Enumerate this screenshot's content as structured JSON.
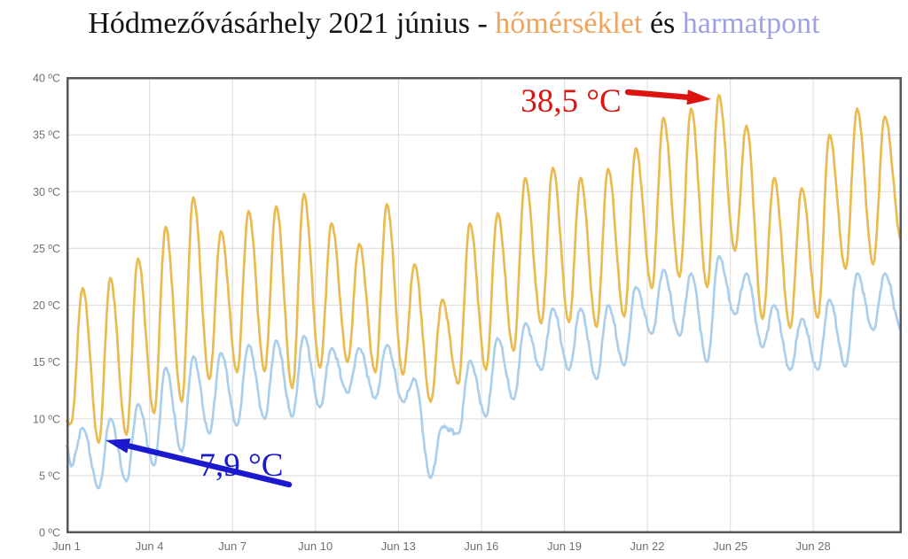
{
  "title": {
    "prefix": "Hódmezővásárhely 2021 június - ",
    "temp_word": "hőmérséklet",
    "conj": " és ",
    "dew_word": "harmatpont"
  },
  "annotations": {
    "max_label": "38,5 °C",
    "min_label": "7,9 °C"
  },
  "colors": {
    "temperature_line": "#E8BC52",
    "dewpoint_line": "#ABCFEA",
    "title_temp_word": "#F0A35B",
    "title_dew_word": "#9EA0E4",
    "annotation_max": "#DB1410",
    "annotation_min": "#1A19CD",
    "grid": "#E0E0E0",
    "plot_border": "#56575C",
    "axis_text": "#6F6F6F"
  },
  "chart_data": {
    "type": "line",
    "title": "Hódmezővásárhely 2021 június - hőmérséklet és harmatpont",
    "xlabel": "",
    "ylabel": "",
    "ylim": [
      0,
      40
    ],
    "grid": true,
    "y_ticks": [
      0,
      5,
      10,
      15,
      20,
      25,
      30,
      35,
      40
    ],
    "y_tick_labels": [
      "0 ºC",
      "5 ºC",
      "10 ºC",
      "15 ºC",
      "20 ºC",
      "25 ºC",
      "30 ºC",
      "35 ºC",
      "40 ºC"
    ],
    "x_tick_days": [
      1,
      4,
      7,
      10,
      13,
      16,
      19,
      22,
      25,
      28
    ],
    "x_tick_labels": [
      "Jun 1",
      "Jun 4",
      "Jun 7",
      "Jun 10",
      "Jun 13",
      "Jun 16",
      "Jun 19",
      "Jun 22",
      "Jun 25",
      "Jun 28"
    ],
    "min_hour": 4,
    "max_hour": 14,
    "series": [
      {
        "name": "hőmérséklet",
        "color": "#E8BC52",
        "start_value": 9.8,
        "end_value": 25.6,
        "daily_max": [
          21.5,
          22.4,
          24.1,
          26.9,
          29.5,
          26.5,
          28.3,
          28.7,
          29.8,
          27.2,
          25.4,
          28.9,
          23.6,
          20.5,
          27.2,
          28.1,
          31.2,
          32.1,
          31.2,
          32.0,
          33.8,
          36.5,
          37.3,
          38.5,
          35.8,
          31.2,
          30.3,
          35.0,
          37.3,
          36.6
        ],
        "daily_min": [
          9.6,
          7.9,
          8.6,
          10.5,
          11.5,
          13.5,
          14.1,
          14.2,
          12.7,
          14.5,
          15.0,
          14.1,
          13.9,
          11.5,
          13.1,
          14.3,
          16.0,
          18.4,
          18.5,
          18.1,
          19.0,
          21.5,
          22.5,
          21.6,
          24.8,
          18.8,
          18.0,
          18.9,
          23.2,
          23.6
        ]
      },
      {
        "name": "harmatpont",
        "color": "#ABCFEA",
        "start_value": 7.6,
        "end_value": 17.8,
        "daily_max": [
          9.2,
          10.0,
          11.3,
          14.5,
          15.5,
          15.8,
          16.5,
          16.9,
          17.3,
          16.2,
          16.2,
          16.5,
          13.5,
          9.3,
          15.1,
          17.1,
          18.4,
          19.7,
          19.7,
          20.0,
          21.6,
          23.1,
          22.8,
          24.3,
          22.8,
          20.0,
          18.8,
          20.5,
          22.8,
          22.8
        ],
        "daily_min": [
          5.8,
          3.9,
          4.5,
          5.9,
          7.1,
          8.7,
          9.4,
          10.0,
          10.2,
          11.0,
          12.3,
          11.8,
          11.5,
          4.8,
          8.7,
          10.2,
          11.7,
          14.3,
          14.3,
          13.5,
          14.7,
          17.5,
          17.3,
          15.0,
          19.2,
          16.3,
          14.3,
          14.3,
          14.6,
          17.8
        ]
      }
    ],
    "annotations": [
      {
        "text": "38,5 °C",
        "value": 38.5,
        "day": 24,
        "series": "hőmérséklet"
      },
      {
        "text": "7,9 °C",
        "value": 7.9,
        "day": 2,
        "series": "hőmérséklet"
      }
    ]
  }
}
